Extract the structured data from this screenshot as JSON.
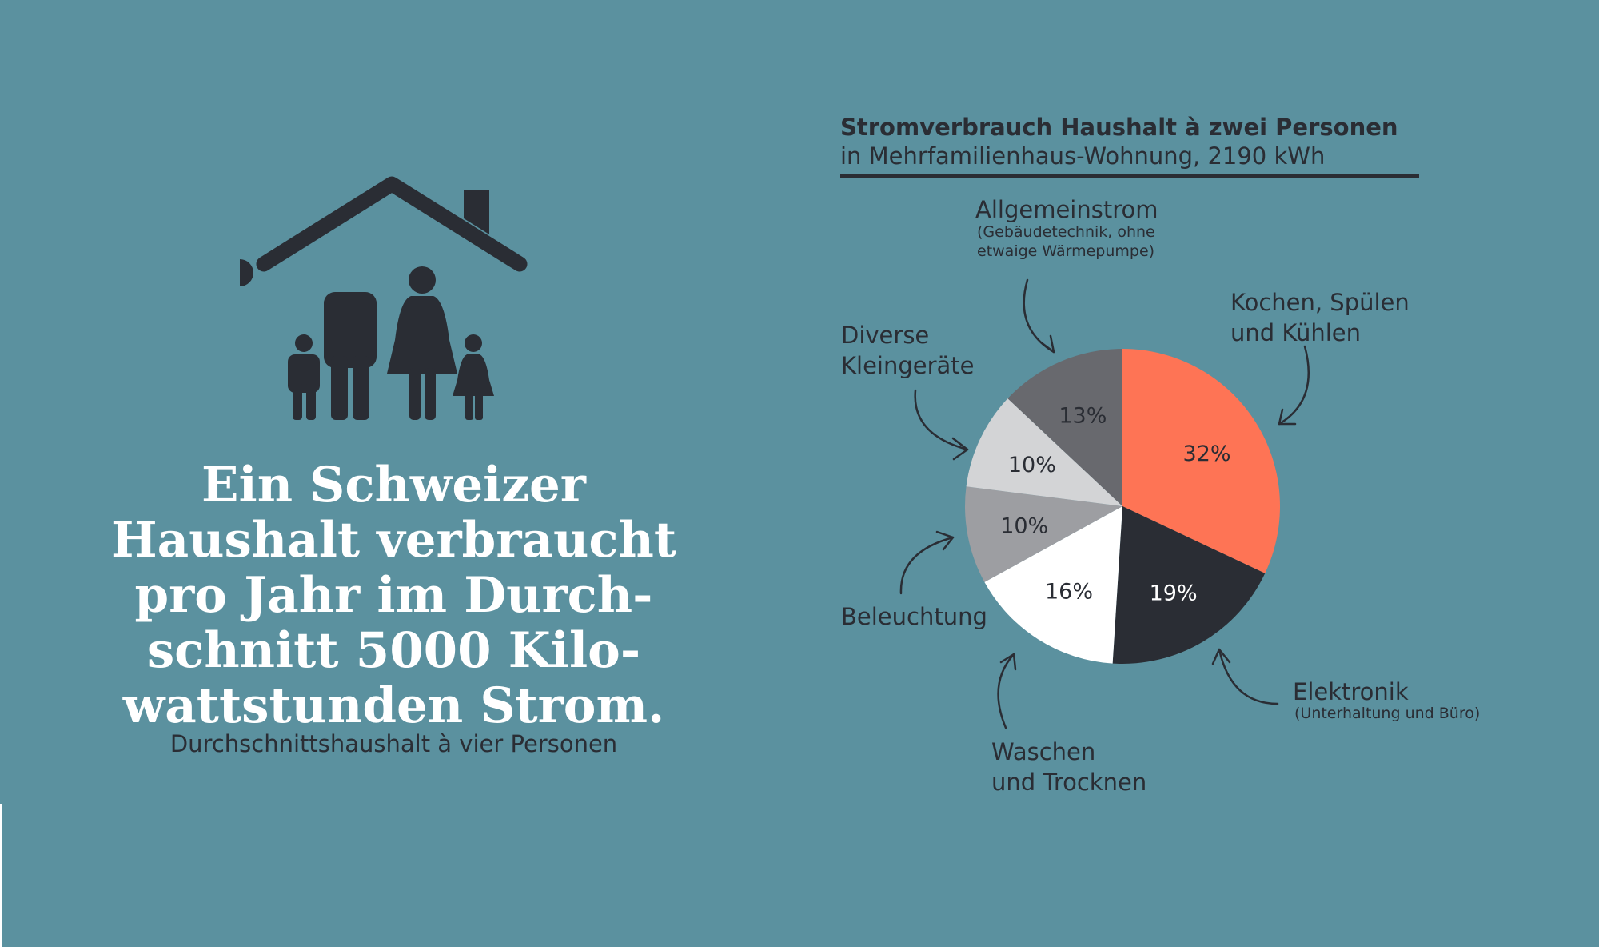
{
  "headline": {
    "lines": [
      "Ein Schweizer",
      "Haushalt verbraucht",
      "pro Jahr im Durch-",
      "schnitt 5000 Kilo-",
      "wattstunden Strom."
    ],
    "subline": "Durchschnittshaushalt à vier Personen"
  },
  "icon": "family-house-icon",
  "chart_data": {
    "type": "pie",
    "title": "Stromverbrauch Haushalt à zwei Personen",
    "subtitle": "in Mehrfamilienhaus-Wohnung, 2190 kWh",
    "slices": [
      {
        "name": "Kochen, Spülen und Kühlen",
        "value": 32,
        "label": "32%",
        "color": "#fe7455"
      },
      {
        "name": "Elektronik",
        "note": "(Unterhaltung und Büro)",
        "value": 19,
        "label": "19%",
        "color": "#2a2d34"
      },
      {
        "name": "Waschen und Trocknen",
        "value": 16,
        "label": "16%",
        "color": "#ffffff"
      },
      {
        "name": "Beleuchtung",
        "value": 10,
        "label": "10%",
        "color": "#9d9ea2"
      },
      {
        "name": "Diverse Kleingeräte",
        "value": 10,
        "label": "10%",
        "color": "#d3d4d6"
      },
      {
        "name": "Allgemeinstrom",
        "note": "(Gebäudetechnik, ohne etwaige Wärmepumpe)",
        "value": 13,
        "label": "13%",
        "color": "#68696e"
      }
    ]
  },
  "labels": {
    "allgemein": {
      "main": "Allgemeinstrom",
      "note1": "(Gebäudetechnik, ohne",
      "note2": "etwaige Wärmepumpe)"
    },
    "kochen": {
      "line1": "Kochen, Spülen",
      "line2": "und Kühlen"
    },
    "diverse": {
      "line1": "Diverse",
      "line2": "Kleingeräte"
    },
    "beleuchtung": {
      "line1": "Beleuchtung"
    },
    "waschen": {
      "line1": "Waschen",
      "line2": "und Trocknen"
    },
    "elektronik": {
      "main": "Elektronik",
      "note": "(Unterhaltung und Büro)"
    }
  }
}
